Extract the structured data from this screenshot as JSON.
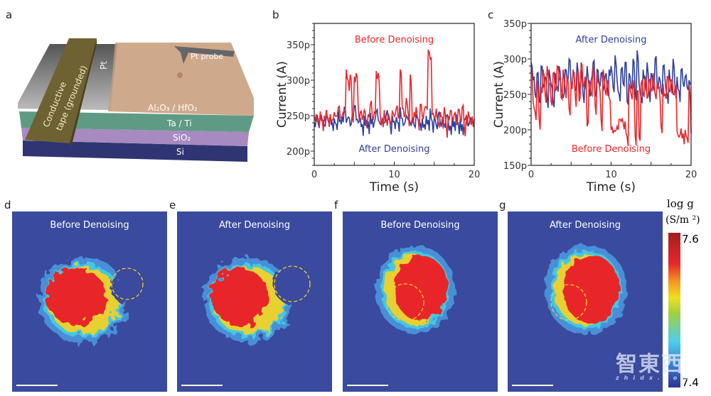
{
  "panels": {
    "a": "a",
    "b": "b",
    "c": "c",
    "d": "d",
    "e": "e",
    "f": "f",
    "g": "g"
  },
  "device": {
    "labels": {
      "probe": "Pt probe",
      "pt": "Pt",
      "tape_line1": "Conductive",
      "tape_line2": "tape (grounded)",
      "oxide": "Al₂O₃ / HfO₂",
      "metal": "Ta / Ti",
      "sio2": "SiO₂",
      "si": "Si"
    },
    "colors": {
      "tape": "#6e6232",
      "pt": "#7a7a7a",
      "oxide": "#c79a78",
      "metal": "#5f9a85",
      "sio2": "#a68ac0",
      "si": "#2f3572"
    }
  },
  "chart_data": [
    {
      "type": "line",
      "panel": "b",
      "xlabel": "Time (s)",
      "ylabel": "Current (A)",
      "xlim": [
        0,
        20
      ],
      "ylim": [
        180,
        380
      ],
      "xticks": [
        0,
        10,
        20
      ],
      "yticks": [
        {
          "v": 200,
          "label": "200p"
        },
        {
          "v": 250,
          "label": "250p"
        },
        {
          "v": 300,
          "label": "300p"
        },
        {
          "v": 350,
          "label": "350p"
        }
      ],
      "x_step": 0.25,
      "annotations": [
        {
          "text": "Before Denoising",
          "color": "#e8262b"
        },
        {
          "text": "After Denoising",
          "color": "#2e3f9e"
        }
      ],
      "series": [
        {
          "name": "After Denoising",
          "color": "#2e3f9e",
          "values": [
            240,
            246,
            238,
            250,
            244,
            236,
            248,
            242,
            252,
            240,
            246,
            238,
            258,
            244,
            249,
            262,
            240,
            248,
            236,
            252,
            262,
            244,
            240,
            247,
            238,
            250,
            244,
            242,
            254,
            246,
            240,
            256,
            244,
            238,
            246,
            240,
            252,
            244,
            236,
            250,
            242,
            248,
            240,
            262,
            246,
            238,
            250,
            244,
            240,
            248,
            236,
            252,
            244,
            240,
            246,
            238,
            250,
            244,
            260,
            242,
            248,
            236,
            252,
            240,
            246,
            238,
            250,
            244,
            236,
            248,
            242,
            252,
            240,
            246,
            238,
            244,
            250,
            236,
            248,
            242,
            240
          ]
        },
        {
          "name": "Before Denoising",
          "color": "#e8262b",
          "values": [
            248,
            252,
            245,
            256,
            243,
            250,
            258,
            246,
            252,
            244,
            255,
            249,
            262,
            247,
            251,
            256,
            315,
            300,
            308,
            250,
            305,
            310,
            260,
            255,
            244,
            258,
            235,
            252,
            266,
            248,
            255,
            313,
            310,
            250,
            245,
            258,
            246,
            253,
            241,
            256,
            249,
            260,
            247,
            315,
            260,
            248,
            275,
            252,
            308,
            245,
            255,
            262,
            243,
            266,
            250,
            258,
            262,
            342,
            330,
            252,
            247,
            260,
            240,
            255,
            248,
            262,
            236,
            250,
            257,
            244,
            253,
            238,
            259,
            247,
            262,
            235,
            251,
            256,
            243,
            249,
            246
          ]
        }
      ]
    },
    {
      "type": "line",
      "panel": "c",
      "xlabel": "Time (s)",
      "ylabel": "Current (A)",
      "xlim": [
        0,
        20
      ],
      "ylim": [
        150,
        350
      ],
      "xticks": [
        0,
        10,
        20
      ],
      "yticks": [
        {
          "v": 150,
          "label": "150p"
        },
        {
          "v": 200,
          "label": "200p"
        },
        {
          "v": 250,
          "label": "250p"
        },
        {
          "v": 300,
          "label": "300p"
        },
        {
          "v": 350,
          "label": "350p"
        }
      ],
      "x_step": 0.25,
      "annotations": [
        {
          "text": "After Denoising",
          "color": "#2e3f9e"
        },
        {
          "text": "Before Denoising",
          "color": "#e8262b"
        }
      ],
      "series": [
        {
          "name": "After Denoising",
          "color": "#2e3f9e",
          "values": [
            295,
            270,
            250,
            280,
            240,
            290,
            260,
            275,
            245,
            285,
            265,
            240,
            280,
            260,
            290,
            255,
            245,
            285,
            270,
            300,
            260,
            280,
            255,
            295,
            265,
            285,
            250,
            275,
            290,
            260,
            270,
            295,
            250,
            285,
            265,
            280,
            255,
            275,
            260,
            285,
            290,
            260,
            305,
            270,
            250,
            285,
            265,
            295,
            240,
            280,
            260,
            300,
            250,
            312,
            265,
            245,
            285,
            270,
            295,
            255,
            280,
            260,
            300,
            265,
            275,
            255,
            290,
            270,
            250,
            285,
            265,
            300,
            260,
            275,
            255,
            285,
            265,
            275,
            260,
            270,
            265
          ]
        },
        {
          "name": "Before Denoising",
          "color": "#e8262b",
          "values": [
            285,
            240,
            225,
            270,
            215,
            260,
            285,
            250,
            290,
            265,
            240,
            280,
            255,
            290,
            270,
            245,
            285,
            260,
            275,
            230,
            265,
            285,
            250,
            280,
            240,
            295,
            260,
            275,
            205,
            270,
            250,
            290,
            235,
            280,
            265,
            215,
            285,
            255,
            270,
            245,
            200,
            195,
            198,
            205,
            215,
            212,
            210,
            212,
            190,
            265,
            250,
            270,
            192,
            255,
            190,
            265,
            250,
            275,
            245,
            270,
            255,
            280,
            250,
            265,
            260,
            205,
            265,
            250,
            275,
            255,
            270,
            250,
            262,
            198,
            190,
            202,
            195,
            200,
            188,
            265,
            195
          ]
        }
      ]
    }
  ],
  "maps": [
    {
      "panel": "d",
      "title": "Before Denoising",
      "circle": true
    },
    {
      "panel": "e",
      "title": "After Denoising",
      "circle": true
    },
    {
      "panel": "f",
      "title": "Before Denoising",
      "circle": true
    },
    {
      "panel": "g",
      "title": "After Denoising",
      "circle": true
    }
  ],
  "colorbar": {
    "title_line1": "log g",
    "title_line2": "(S/m ²)",
    "max": "7.6",
    "min": "7.4",
    "colors": [
      "#2e3590",
      "#3aa0e0",
      "#4fd0e8",
      "#a0d040",
      "#f0e020",
      "#f59a20",
      "#e8262b",
      "#a02020"
    ]
  },
  "watermark": {
    "text": "智東西",
    "sub": "zhidx.com"
  }
}
